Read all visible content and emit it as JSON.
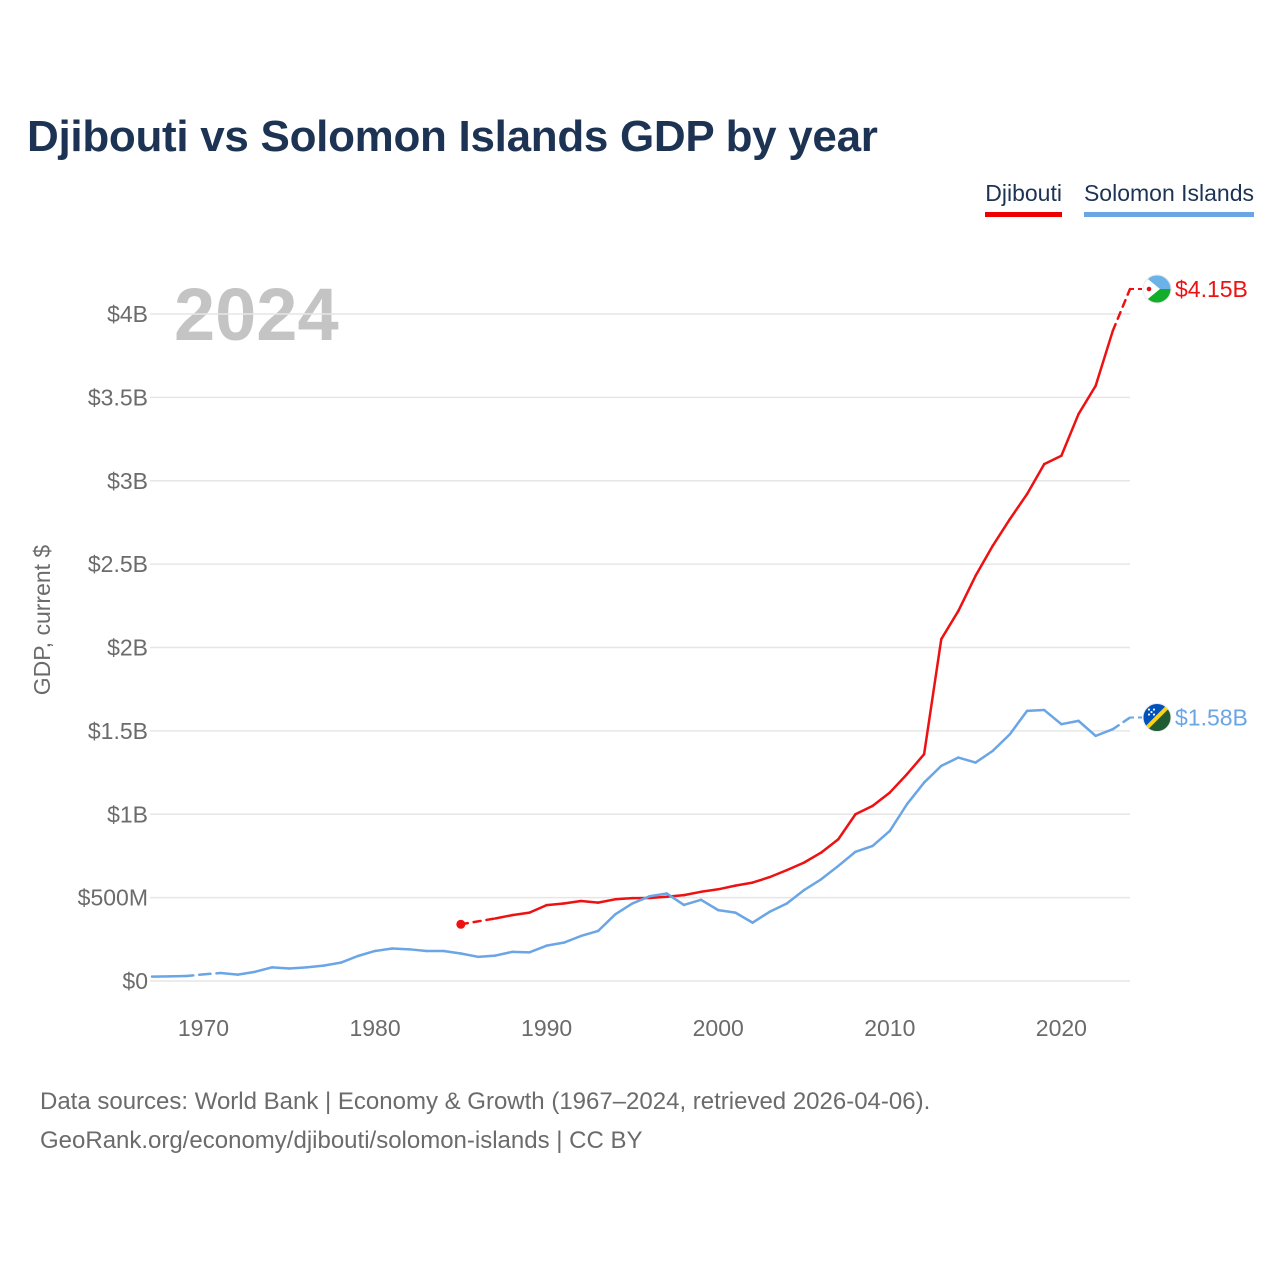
{
  "title": "Djibouti vs Solomon Islands GDP by year",
  "legend": [
    {
      "label": "Djibouti",
      "color": "#ee1111"
    },
    {
      "label": "Solomon Islands",
      "color": "#6aa5e6"
    }
  ],
  "year_label": "2024",
  "footer": {
    "line1": "Data sources: World Bank | Economy & Growth (1967–2024, retrieved 2026-04-06).",
    "line2": "GeoRank.org/economy/djibouti/solomon-islands | CC BY"
  },
  "flag_icons": [
    "djibouti-flag-icon",
    "solomon-islands-flag-icon"
  ],
  "chart_data": {
    "type": "line",
    "title": "Djibouti vs Solomon Islands GDP by year",
    "xlabel": "",
    "ylabel": "GDP, current $",
    "xlim": [
      1967,
      2024
    ],
    "ylim": [
      0,
      4150000000
    ],
    "yticks": [
      0,
      500000000,
      1000000000,
      1500000000,
      2000000000,
      2500000000,
      3000000000,
      3500000000,
      4000000000
    ],
    "ytick_labels": [
      "$0",
      "$500M",
      "$1B",
      "$1.5B",
      "$2B",
      "$2.5B",
      "$3B",
      "$3.5B",
      "$4B"
    ],
    "xticks": [
      1970,
      1980,
      1990,
      2000,
      2010,
      2020
    ],
    "xtick_labels": [
      "1970",
      "1980",
      "1990",
      "2000",
      "2010",
      "2020"
    ],
    "series": [
      {
        "name": "Djibouti",
        "color": "#ee1111",
        "end_label": "$4.15B",
        "x": [
          1985,
          1987,
          1988,
          1989,
          1990,
          1991,
          1992,
          1993,
          1994,
          1995,
          1996,
          1997,
          1998,
          1999,
          2000,
          2001,
          2002,
          2003,
          2004,
          2005,
          2006,
          2007,
          2008,
          2009,
          2010,
          2011,
          2012,
          2013,
          2014,
          2015,
          2016,
          2017,
          2018,
          2019,
          2020,
          2021,
          2022,
          2023,
          2024
        ],
        "values": [
          340000000,
          375000000,
          395000000,
          410000000,
          455000000,
          465000000,
          480000000,
          470000000,
          490000000,
          497000000,
          498000000,
          505000000,
          515000000,
          535000000,
          550000000,
          572000000,
          590000000,
          623000000,
          665000000,
          710000000,
          770000000,
          850000000,
          1000000000,
          1050000000,
          1130000000,
          1240000000,
          1360000000,
          2050000000,
          2220000000,
          2430000000,
          2610000000,
          2770000000,
          2920000000,
          3100000000,
          3150000000,
          3400000000,
          3570000000,
          3900000000,
          4150000000
        ],
        "dashed_segments": [
          [
            1985,
            1987
          ],
          [
            2023,
            2024
          ]
        ]
      },
      {
        "name": "Solomon Islands",
        "color": "#6aa5e6",
        "end_label": "$1.58B",
        "x": [
          1967,
          1968,
          1969,
          1970,
          1971,
          1972,
          1973,
          1974,
          1975,
          1976,
          1977,
          1978,
          1979,
          1980,
          1981,
          1982,
          1983,
          1984,
          1985,
          1986,
          1987,
          1988,
          1989,
          1990,
          1991,
          1992,
          1993,
          1994,
          1995,
          1996,
          1997,
          1998,
          1999,
          2000,
          2001,
          2002,
          2003,
          2004,
          2005,
          2006,
          2007,
          2008,
          2009,
          2010,
          2011,
          2012,
          2013,
          2014,
          2015,
          2016,
          2017,
          2018,
          2019,
          2020,
          2021,
          2022,
          2023,
          2024
        ],
        "values": [
          26000000,
          28000000,
          30000000,
          40000000,
          48000000,
          38000000,
          55000000,
          82000000,
          75000000,
          82000000,
          92000000,
          110000000,
          150000000,
          180000000,
          195000000,
          190000000,
          180000000,
          180000000,
          165000000,
          145000000,
          152000000,
          175000000,
          172000000,
          212000000,
          230000000,
          270000000,
          300000000,
          400000000,
          465000000,
          508000000,
          525000000,
          456000000,
          487000000,
          425000000,
          410000000,
          350000000,
          415000000,
          465000000,
          545000000,
          610000000,
          690000000,
          775000000,
          810000000,
          900000000,
          1060000000,
          1190000000,
          1290000000,
          1340000000,
          1310000000,
          1380000000,
          1480000000,
          1620000000,
          1625000000,
          1540000000,
          1560000000,
          1470000000,
          1510000000,
          1580000000
        ],
        "dashed_segments": [
          [
            1969,
            1971
          ],
          [
            2023,
            2024
          ]
        ]
      }
    ]
  }
}
